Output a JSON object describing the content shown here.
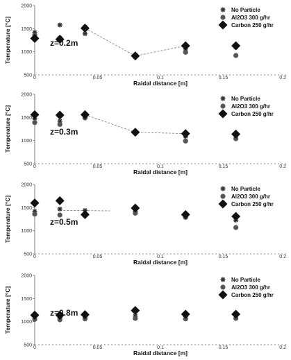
{
  "chart_data": [
    {
      "type": "scatter",
      "panel_label": "z=0.2m",
      "xlabel": "Raidal distance [m]",
      "ylabel": "Temperature [°C]",
      "xlim": [
        0,
        0.2
      ],
      "ylim": [
        500,
        2000
      ],
      "xticks": [
        "0",
        "0.05",
        "0.1",
        "0.15",
        "0.2"
      ],
      "yticks": [
        "500",
        "1000",
        "1500",
        "2000"
      ],
      "legend_position": "top-right",
      "series": [
        {
          "name": "No Particle",
          "marker": "asterisk",
          "x": [
            0,
            0.02,
            0.04,
            0.08,
            0.12,
            0.16
          ],
          "y": [
            1420,
            1580,
            1390,
            930,
            1060,
            1100
          ]
        },
        {
          "name": "Al2O3 300 g/hr",
          "marker": "circle",
          "x": [
            0,
            0.02,
            0.04,
            0.08,
            0.12,
            0.16
          ],
          "y": [
            1360,
            1300,
            1540,
            900,
            990,
            920
          ]
        },
        {
          "name": "Carbon 250 g/hr",
          "marker": "diamond",
          "x": [
            0,
            0.02,
            0.04,
            0.08,
            0.12,
            0.16
          ],
          "y": [
            1290,
            1270,
            1510,
            910,
            1130,
            1130
          ]
        }
      ]
    },
    {
      "type": "scatter",
      "panel_label": "z=0.3m",
      "xlabel": "Raidal distance [m]",
      "ylabel": "Temperature [°C]",
      "xlim": [
        0,
        0.2
      ],
      "ylim": [
        500,
        2000
      ],
      "xticks": [
        "0",
        "0.05",
        "0.1",
        "0.15",
        "0.2"
      ],
      "yticks": [
        "500",
        "1000",
        "1500",
        "2000"
      ],
      "legend_position": "top-right",
      "series": [
        {
          "name": "No Particle",
          "marker": "asterisk",
          "x": [
            0,
            0.02,
            0.04,
            0.08,
            0.12,
            0.16
          ],
          "y": [
            1480,
            1420,
            1510,
            1190,
            1090,
            1110
          ]
        },
        {
          "name": "Al2O3 300 g/hr",
          "marker": "circle",
          "x": [
            0,
            0.02,
            0.04,
            0.08,
            0.12,
            0.16
          ],
          "y": [
            1390,
            1350,
            1490,
            1180,
            990,
            1040
          ]
        },
        {
          "name": "Carbon 250 g/hr",
          "marker": "diamond",
          "x": [
            0,
            0.02,
            0.04,
            0.08,
            0.12,
            0.16
          ],
          "y": [
            1560,
            1550,
            1560,
            1180,
            1150,
            1140
          ]
        }
      ]
    },
    {
      "type": "scatter",
      "panel_label": "z=0.5m",
      "xlabel": "Raidal distance [m]",
      "ylabel": "Temperature [°C]",
      "xlim": [
        0,
        0.2
      ],
      "ylim": [
        500,
        2000
      ],
      "xticks": [
        "0",
        "0.05",
        "0.1",
        "0.15",
        "0.2"
      ],
      "yticks": [
        "500",
        "1000",
        "1500",
        "2000"
      ],
      "legend_position": "top-right",
      "series": [
        {
          "name": "No Particle",
          "marker": "asterisk",
          "x": [
            0,
            0.02,
            0.04,
            0.08,
            0.12,
            0.16
          ],
          "y": [
            1420,
            1470,
            1440,
            1420,
            1300,
            1230
          ]
        },
        {
          "name": "Al2O3 300 g/hr",
          "marker": "circle",
          "x": [
            0,
            0.02,
            0.04,
            0.08,
            0.12,
            0.16
          ],
          "y": [
            1360,
            1340,
            1370,
            1380,
            1290,
            1070
          ]
        },
        {
          "name": "Carbon 250 g/hr",
          "marker": "diamond",
          "x": [
            0,
            0.02,
            0.04,
            0.08,
            0.12,
            0.16
          ],
          "y": [
            1600,
            1650,
            1350,
            1490,
            1350,
            1310
          ]
        }
      ]
    },
    {
      "type": "scatter",
      "panel_label": "z=0.8m",
      "xlabel": "Raidal distance [m]",
      "ylabel": "Temperature [°C]",
      "xlim": [
        0,
        0.2
      ],
      "ylim": [
        500,
        2000
      ],
      "xticks": [
        "0",
        "0.05",
        "0.1",
        "0.15",
        "0.2"
      ],
      "yticks": [
        "500",
        "1000",
        "1500",
        "2000"
      ],
      "legend_position": "top-right",
      "series": [
        {
          "name": "No Particle",
          "marker": "asterisk",
          "x": [
            0,
            0.02,
            0.04,
            0.08,
            0.12,
            0.16
          ],
          "y": [
            1110,
            1080,
            1100,
            1120,
            1110,
            1120
          ]
        },
        {
          "name": "Al2O3 300 g/hr",
          "marker": "circle",
          "x": [
            0,
            0.02,
            0.04,
            0.08,
            0.12,
            0.16
          ],
          "y": [
            1050,
            1040,
            1060,
            1070,
            1060,
            1070
          ]
        },
        {
          "name": "Carbon 250 g/hr",
          "marker": "diamond",
          "x": [
            0,
            0.02,
            0.04,
            0.08,
            0.12,
            0.16
          ],
          "y": [
            1140,
            1140,
            1150,
            1240,
            1160,
            1160
          ]
        }
      ]
    }
  ]
}
